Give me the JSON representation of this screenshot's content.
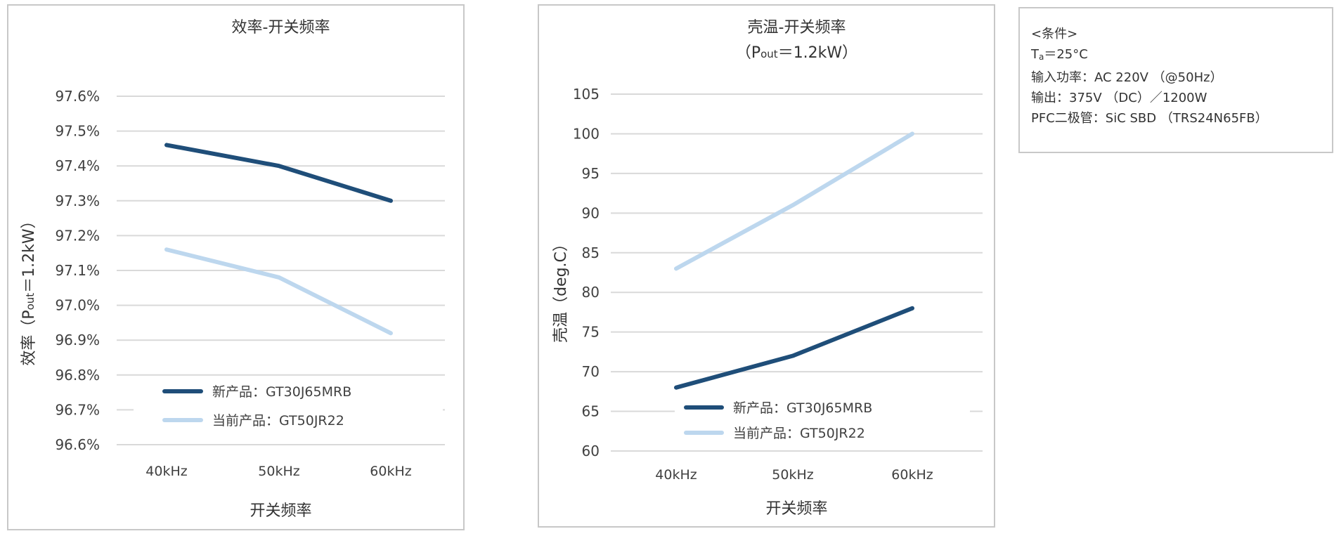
{
  "chart_data": [
    {
      "type": "line",
      "title": [
        "效率-开关频率"
      ],
      "xlabel": "开关频率",
      "ylabel_parts": [
        "效率（P",
        "out",
        "＝1.2kW）"
      ],
      "categories": [
        "40kHz",
        "50kHz",
        "60kHz"
      ],
      "yticks": [
        "96.6%",
        "96.7%",
        "96.8%",
        "96.9%",
        "97.0%",
        "97.1%",
        "97.2%",
        "97.3%",
        "97.4%",
        "97.5%",
        "97.6%"
      ],
      "ylim": [
        96.6,
        97.6
      ],
      "grid": true,
      "legend_placement": "bottom-center",
      "series": [
        {
          "name": "新产品：GT30J65MRB",
          "color": "#1f4e79",
          "values": [
            97.46,
            97.4,
            97.3
          ]
        },
        {
          "name": "当前产品：GT50JR22",
          "color": "#bdd7ee",
          "values": [
            97.16,
            97.08,
            96.92
          ]
        }
      ]
    },
    {
      "type": "line",
      "title": [
        "壳温-开关频率",
        "（P|out|＝1.2kW）"
      ],
      "xlabel": "开关频率",
      "ylabel_parts": [
        "壳温（deg.C）"
      ],
      "categories": [
        "40kHz",
        "50kHz",
        "60kHz"
      ],
      "yticks": [
        "60",
        "65",
        "70",
        "75",
        "80",
        "85",
        "90",
        "95",
        "100",
        "105"
      ],
      "ylim": [
        60,
        105
      ],
      "grid": true,
      "legend_placement": "bottom-center",
      "series": [
        {
          "name": "新产品：GT30J65MRB",
          "color": "#1f4e79",
          "values": [
            68,
            72,
            78
          ]
        },
        {
          "name": "当前产品：GT50JR22",
          "color": "#bdd7ee",
          "values": [
            83,
            91,
            100
          ]
        }
      ]
    }
  ],
  "conditions": {
    "heading": "<条件>",
    "ta_prefix": "T",
    "ta_sub": "a",
    "ta_suffix": "＝25°C",
    "lines": [
      "输入功率：AC 220V （@50Hz）",
      "输出：375V （DC）／1200W",
      "PFC二极管：SiC SBD （TRS24N65FB）"
    ]
  }
}
